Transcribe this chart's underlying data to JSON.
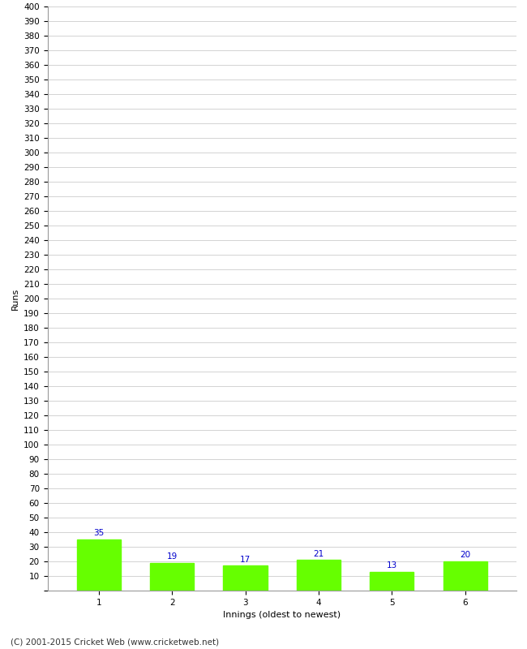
{
  "title": "",
  "categories": [
    1,
    2,
    3,
    4,
    5,
    6
  ],
  "values": [
    35,
    19,
    17,
    21,
    13,
    20
  ],
  "bar_color": "#66ff00",
  "bar_edge_color": "#66ff00",
  "ylabel": "Runs",
  "xlabel": "Innings (oldest to newest)",
  "ylim": [
    0,
    400
  ],
  "ytick_step": 10,
  "label_color": "#0000cc",
  "grid_color": "#cccccc",
  "background_color": "#ffffff",
  "footer_text": "(C) 2001-2015 Cricket Web (www.cricketweb.net)",
  "axis_label_fontsize": 8,
  "tick_fontsize": 7.5,
  "value_label_fontsize": 7.5,
  "footer_fontsize": 7.5
}
